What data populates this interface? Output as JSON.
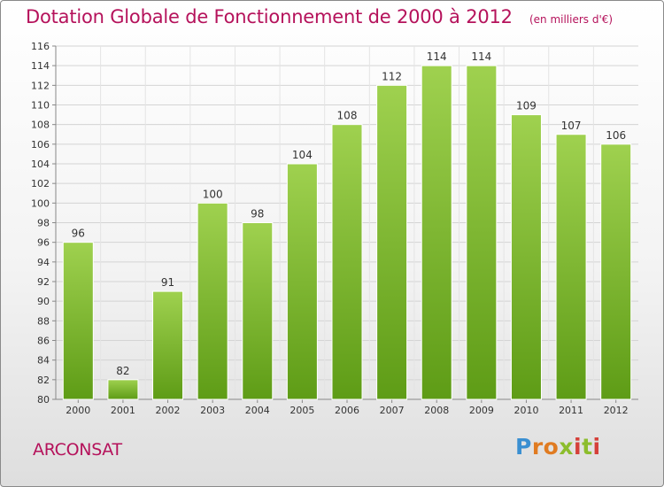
{
  "header": {
    "title": "Dotation Globale de Fonctionnement de 2000 à 2012",
    "unit": "(en milliers d'€)"
  },
  "footer": {
    "commune": "ARCONSAT",
    "logo_letters": [
      "P",
      "r",
      "o",
      "x",
      "i",
      "t",
      "i"
    ]
  },
  "colors": {
    "title": "#b5125b",
    "bar_top": "#9fd14f",
    "bar_bottom": "#5e9c16",
    "grid": "#d4d4d4"
  },
  "chart_data": {
    "type": "bar",
    "title": "Dotation Globale de Fonctionnement de 2000 à 2012",
    "subtitle": "(en milliers d'€)",
    "xlabel": "",
    "ylabel": "",
    "categories": [
      "2000",
      "2001",
      "2002",
      "2003",
      "2004",
      "2005",
      "2006",
      "2007",
      "2008",
      "2009",
      "2010",
      "2011",
      "2012"
    ],
    "values": [
      96,
      82,
      91,
      100,
      98,
      104,
      108,
      112,
      114,
      114,
      109,
      107,
      106
    ],
    "ylim": [
      80,
      116
    ],
    "yticks": [
      80,
      82,
      84,
      86,
      88,
      90,
      92,
      94,
      96,
      98,
      100,
      102,
      104,
      106,
      108,
      110,
      112,
      114,
      116
    ],
    "grid": true,
    "legend": "none"
  }
}
